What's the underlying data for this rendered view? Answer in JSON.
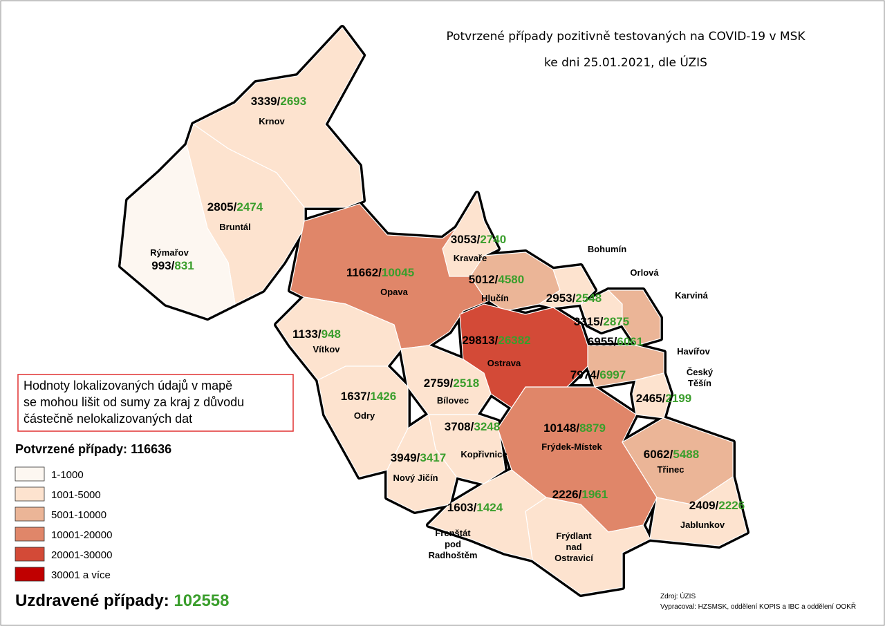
{
  "header": {
    "title": "Potvrzené případy pozitivně testovaných na COVID-19 v MSK",
    "subtitle": "ke dni 25.01.2021, dle ÚZIS"
  },
  "separator": "/",
  "regions": [
    {
      "name": [
        "Krnov"
      ],
      "confirmed": 3339,
      "recovered": 2693,
      "color": "#fde3cf"
    },
    {
      "name": [
        "Bruntál"
      ],
      "confirmed": 2805,
      "recovered": 2474,
      "color": "#fde3cf"
    },
    {
      "name": [
        "Rýmařov"
      ],
      "confirmed": 993,
      "recovered": 831,
      "color": "#fdf7f1"
    },
    {
      "name": [
        "Opava"
      ],
      "confirmed": 11662,
      "recovered": 10045,
      "color": "#e08669"
    },
    {
      "name": [
        "Kravaře"
      ],
      "confirmed": 3053,
      "recovered": 2740,
      "color": "#fde3cf"
    },
    {
      "name": [
        "Hlučín"
      ],
      "confirmed": 5012,
      "recovered": 4580,
      "color": "#ebb597"
    },
    {
      "name": [
        "Vítkov"
      ],
      "confirmed": 1133,
      "recovered": 948,
      "color": "#fde3cf"
    },
    {
      "name": [
        "Bohumín"
      ],
      "confirmed": 2953,
      "recovered": 2548,
      "color": "#fde3cf"
    },
    {
      "name": [
        "Orlová"
      ],
      "confirmed": 3315,
      "recovered": 2875,
      "color": "#fde3cf"
    },
    {
      "name": [
        "Karviná"
      ],
      "confirmed": 6955,
      "recovered": 6061,
      "color": "#ebb597"
    },
    {
      "name": [
        "Havířov"
      ],
      "confirmed": 7974,
      "recovered": 6997,
      "color": "#ebb597"
    },
    {
      "name": [
        "Český",
        "Těšín"
      ],
      "confirmed": 2465,
      "recovered": 2199,
      "color": "#fde3cf"
    },
    {
      "name": [
        "Bílovec"
      ],
      "confirmed": 2759,
      "recovered": 2518,
      "color": "#fde3cf"
    },
    {
      "name": [
        "Odry"
      ],
      "confirmed": 1637,
      "recovered": 1426,
      "color": "#fde3cf"
    },
    {
      "name": [
        "Kopřivnice"
      ],
      "confirmed": 3708,
      "recovered": 3248,
      "color": "#fde3cf"
    },
    {
      "name": [
        "Nový Jičín"
      ],
      "confirmed": 3949,
      "recovered": 3417,
      "color": "#fde3cf"
    },
    {
      "name": [
        "Frýdek-Místek"
      ],
      "confirmed": 10148,
      "recovered": 8879,
      "color": "#e08669"
    },
    {
      "name": [
        "Třinec"
      ],
      "confirmed": 6062,
      "recovered": 5488,
      "color": "#ebb597"
    },
    {
      "name": [
        "Jablunkov"
      ],
      "confirmed": 2409,
      "recovered": 2226,
      "color": "#fde3cf"
    },
    {
      "name": [
        "Frýdlant",
        "nad",
        "Ostravicí"
      ],
      "confirmed": 2226,
      "recovered": 1961,
      "color": "#fde3cf"
    },
    {
      "name": [
        "Frenštát",
        "pod",
        "Radhoštěm"
      ],
      "confirmed": 1603,
      "recovered": 1424,
      "color": "#fde3cf"
    },
    {
      "name": [
        "Ostrava"
      ],
      "confirmed": 29813,
      "recovered": 26382,
      "color": "#d34a37"
    }
  ],
  "note": [
    "Hodnoty lokalizovaných údajů v mapě",
    "se mohou lišit od sumy za kraj z důvodu",
    "částečně nelokalizovaných dat"
  ],
  "legend": {
    "title": "Potvrzené případy:",
    "total": 116636,
    "classes": [
      {
        "label": "1-1000",
        "color": "#fdf7f1"
      },
      {
        "label": "1001-5000",
        "color": "#fde3cf"
      },
      {
        "label": "5001-10000",
        "color": "#ebb597"
      },
      {
        "label": "10001-20000",
        "color": "#e08669"
      },
      {
        "label": "20001-30000",
        "color": "#d34a37"
      },
      {
        "label": "30001 a více",
        "color": "#c00000"
      }
    ]
  },
  "recovered": {
    "label": "Uzdravené případy:",
    "total": 102558
  },
  "footer": {
    "source": "Zdroj: ÚZIS",
    "author": "Vypracoval: HZSMSK, oddělení KOPIS a IBC a oddělení OOKŘ"
  }
}
